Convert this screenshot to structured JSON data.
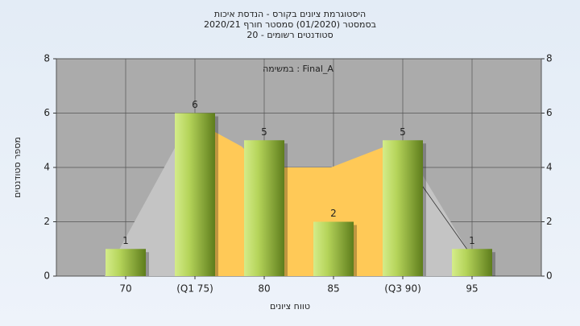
{
  "chart_data": {
    "type": "bar",
    "title": [
      "היסטוגרמת ציונים בקורס - הנדסת איכות",
      "בסמסטר  (01/2020)  סמסטר חורף 2020/21",
      "סטודנטים רשומים - 20"
    ],
    "legend_label": "במשימה : Final_A",
    "xlabel": "טווח ציונים",
    "ylabel": "מספר סטודנטים",
    "categories": [
      "70",
      "(Q1 75)",
      "80",
      "85",
      "(Q3 90)",
      "95"
    ],
    "values": [
      1,
      6,
      5,
      2,
      5,
      1
    ],
    "ylim": [
      0,
      8
    ],
    "yticks": [
      0,
      2,
      4,
      6,
      8
    ],
    "grid": true
  }
}
